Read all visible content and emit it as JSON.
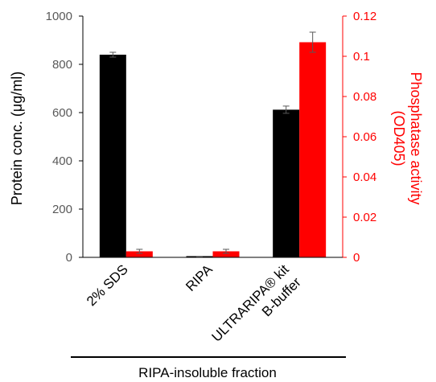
{
  "chart_data": {
    "type": "bar",
    "categories": [
      "2% SDS",
      "RIPA",
      "ULTRARIPA® kit\nB-buffer"
    ],
    "series": [
      {
        "axis": "left",
        "color": "#000000",
        "values": [
          840,
          3,
          612
        ],
        "errors": [
          10,
          1,
          15
        ]
      },
      {
        "axis": "right",
        "color": "#ff0000",
        "values": [
          0.003,
          0.003,
          0.107
        ],
        "errors": [
          0.001,
          0.001,
          0.005
        ]
      }
    ],
    "y_left": {
      "label": "Protein conc. (μg/ml)",
      "range": [
        0,
        1000
      ],
      "ticks": [
        0,
        200,
        400,
        600,
        800,
        1000
      ],
      "tick_labels": [
        "0",
        "200",
        "400",
        "600",
        "800",
        "1000"
      ]
    },
    "y_right": {
      "label_line1": "Phosphatase activity",
      "label_line2": "(OD405)",
      "range": [
        0,
        0.12
      ],
      "ticks": [
        0,
        0.02,
        0.04,
        0.06,
        0.08,
        0.1,
        0.12
      ],
      "tick_labels": [
        "0",
        "0.02",
        "0.04",
        "0.06",
        "0.08",
        "0.1",
        "0.12"
      ],
      "color": "#ff0000"
    },
    "xlabel": "RIPA-insoluble fraction",
    "grid": false
  }
}
